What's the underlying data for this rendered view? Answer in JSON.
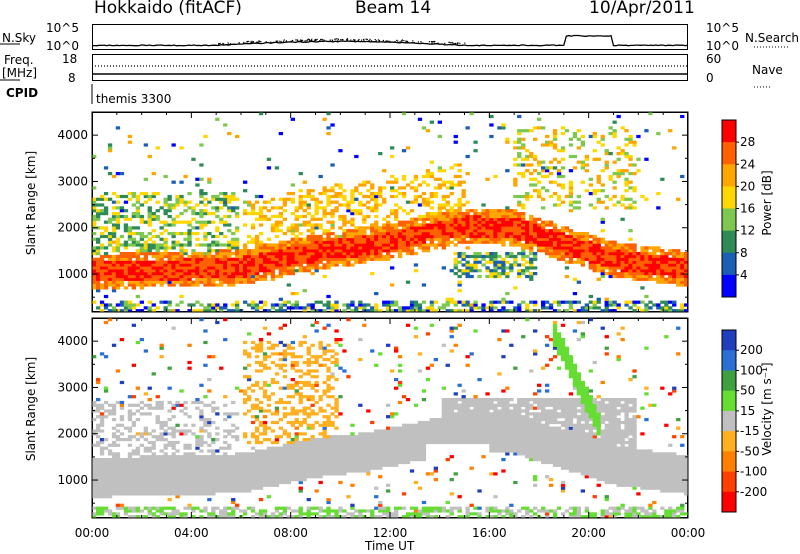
{
  "header": {
    "station": "Hokkaido (fitACF)",
    "beam": "Beam 14",
    "date": "10/Apr/2011"
  },
  "top_panels": {
    "nsky_label": "N.Sky",
    "nsearch_label": "N.Search",
    "nsky_tick_high": "10^5",
    "nsky_tick_low": "10^0",
    "freq_label_1": "Freq.",
    "freq_label_2": "[MHz]",
    "freq_tick_high": "18",
    "freq_tick_low": "8",
    "nave_tick_high": "60",
    "nave_tick_low": "0",
    "nave_label": "Nave",
    "cpid_label": "CPID",
    "cpid_value": "themis 3300"
  },
  "chart_data": [
    {
      "type": "heatmap",
      "name": "Power",
      "ylabel": "Slant Range [km]",
      "xlabel": "Time UT",
      "ylim": [
        180,
        4500
      ],
      "yticks": [
        1000,
        2000,
        3000,
        4000
      ],
      "xticks": [
        "00:00",
        "04:00",
        "08:00",
        "12:00",
        "16:00",
        "20:00",
        "00:00"
      ],
      "colorbar_label": "Power [dB]",
      "colorbar_ticks": [
        "4",
        "8",
        "12",
        "16",
        "20",
        "24",
        "28"
      ],
      "colors": [
        "#0000ff",
        "#1a5fb4",
        "#2e8b57",
        "#7ec850",
        "#ffd700",
        "#ffa500",
        "#ff6000",
        "#ff0000"
      ]
    },
    {
      "type": "heatmap",
      "name": "Velocity",
      "ylabel": "Slant Range [km]",
      "xlabel": "Time UT",
      "ylim": [
        180,
        4500
      ],
      "yticks": [
        1000,
        2000,
        3000,
        4000
      ],
      "xticks": [
        "00:00",
        "04:00",
        "08:00",
        "12:00",
        "16:00",
        "20:00",
        "00:00"
      ],
      "colorbar_label": "Velocity [m s⁻¹]",
      "colorbar_ticks": [
        "200",
        "100",
        "50",
        "15",
        "-15",
        "-50",
        "-100",
        "-200"
      ],
      "colors": [
        "#1f3fbf",
        "#2a6fd6",
        "#3fa03f",
        "#66dd33",
        "#c0c0c0",
        "#ffb020",
        "#ff8000",
        "#ff4000",
        "#ff0000"
      ]
    }
  ]
}
